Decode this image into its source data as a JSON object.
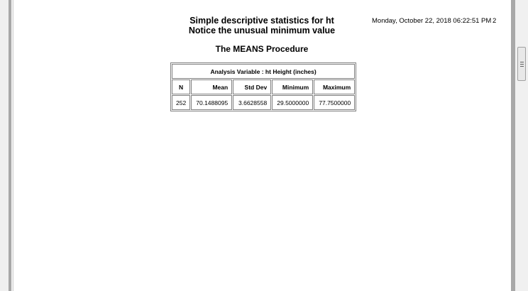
{
  "report": {
    "title_line1": "Simple descriptive statistics for ht",
    "title_line2": "Notice the unusual minimum value",
    "datetime": "Monday, October 22, 2018 06:22:51 PM",
    "page_number": "2",
    "procedure": "The MEANS Procedure"
  },
  "table": {
    "caption": "Analysis Variable : ht Height (inches)",
    "headers": [
      "N",
      "Mean",
      "Std Dev",
      "Minimum",
      "Maximum"
    ],
    "rows": [
      [
        "252",
        "70.1488095",
        "3.6628558",
        "29.5000000",
        "77.7500000"
      ]
    ]
  }
}
